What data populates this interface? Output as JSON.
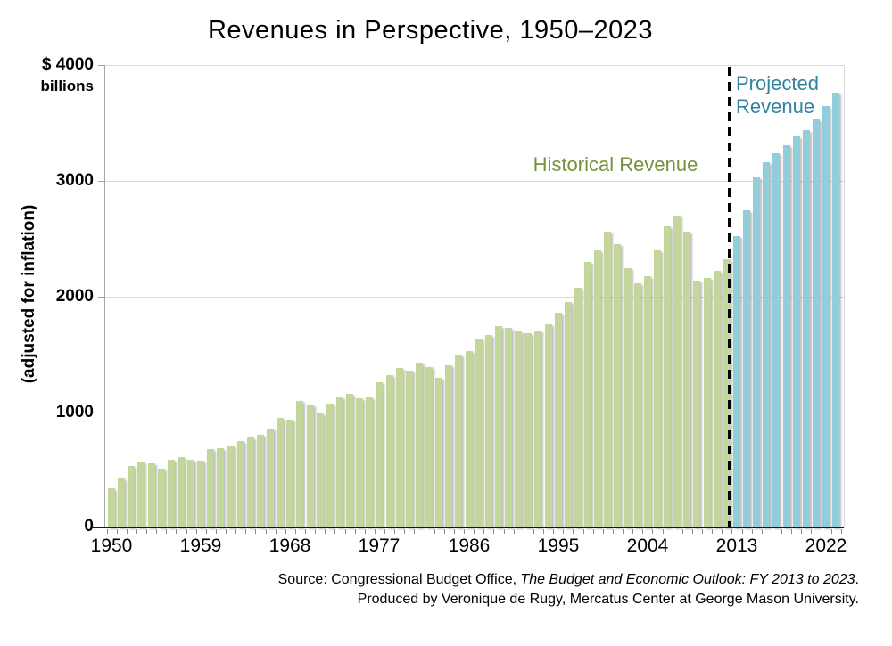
{
  "title": "Revenues in Perspective, 1950–2023",
  "y_axis": {
    "top_label_line1": "$ 4000",
    "top_label_line2": "billions",
    "rotated_label": "(adjusted for inflation)",
    "ticks": [
      "3000",
      "2000",
      "1000",
      "0"
    ]
  },
  "x_axis": {
    "ticks": [
      "1950",
      "1959",
      "1968",
      "1977",
      "1986",
      "1995",
      "2004",
      "2013",
      "2022"
    ],
    "tick_years": [
      1950,
      1959,
      1968,
      1977,
      1986,
      1995,
      2004,
      2013,
      2022
    ]
  },
  "annotations": {
    "historical": "Historical Revenue",
    "projected": "Projected Revenue"
  },
  "source": {
    "line1_prefix": "Source: Congressional Budget Office, ",
    "line1_italic": "The Budget and Economic Outlook: FY 2013 to 2023",
    "line1_suffix": ".",
    "line2": "Produced by Veronique de Rugy, Mercatus Center at George Mason University."
  },
  "colors": {
    "historical_bar": "#C3D69B",
    "projected_bar": "#92CDDC",
    "historical_label": "#76923C",
    "projected_label": "#31849B",
    "gridline": "#D9D9D9",
    "axis": "#000000"
  },
  "chart_data": {
    "type": "bar",
    "title": "Revenues in Perspective, 1950–2023",
    "xlabel": "",
    "ylabel": "$ billions (adjusted for inflation)",
    "ylim": [
      0,
      4000
    ],
    "y_gridlines": [
      1000,
      2000,
      3000,
      4000
    ],
    "grid": true,
    "legend_position": "inline-annotations",
    "divider_year": 2013,
    "series": [
      {
        "name": "Historical Revenue",
        "color": "#C3D69B",
        "start_year": 1950,
        "end_year": 2012,
        "values": [
          340,
          425,
          535,
          560,
          555,
          510,
          585,
          610,
          585,
          580,
          675,
          685,
          710,
          745,
          775,
          800,
          855,
          950,
          935,
          1095,
          1065,
          990,
          1070,
          1125,
          1155,
          1115,
          1125,
          1260,
          1320,
          1380,
          1360,
          1425,
          1385,
          1295,
          1400,
          1495,
          1525,
          1635,
          1665,
          1740,
          1725,
          1695,
          1680,
          1700,
          1760,
          1860,
          1950,
          2070,
          2300,
          2395,
          2560,
          2450,
          2245,
          2110,
          2175,
          2400,
          2605,
          2700,
          2555,
          2135,
          2155,
          2220,
          2320
        ]
      },
      {
        "name": "Projected Revenue",
        "color": "#92CDDC",
        "start_year": 2013,
        "end_year": 2023,
        "values": [
          2520,
          2740,
          3030,
          3160,
          3240,
          3310,
          3380,
          3440,
          3530,
          3645,
          3760
        ]
      }
    ]
  }
}
